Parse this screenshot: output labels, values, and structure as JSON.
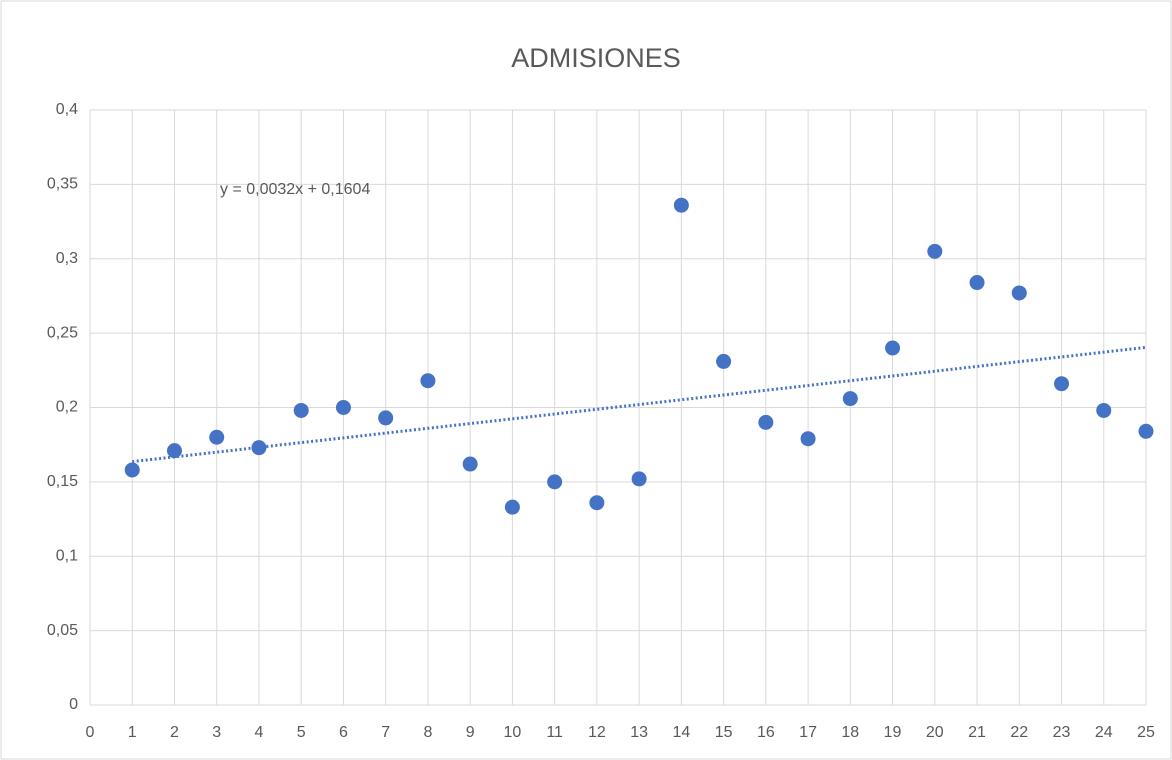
{
  "chart_data": {
    "type": "scatter",
    "title": "ADMISIONES",
    "x": [
      1,
      2,
      3,
      4,
      5,
      6,
      7,
      8,
      9,
      10,
      11,
      12,
      13,
      14,
      15,
      16,
      17,
      18,
      19,
      20,
      21,
      22,
      23,
      24,
      25
    ],
    "values": [
      0.158,
      0.171,
      0.18,
      0.173,
      0.198,
      0.2,
      0.193,
      0.218,
      0.162,
      0.133,
      0.15,
      0.136,
      0.152,
      0.336,
      0.231,
      0.19,
      0.179,
      0.206,
      0.24,
      0.305,
      0.284,
      0.277,
      0.216,
      0.198,
      0.184
    ],
    "color": "#4472c4",
    "trendline": {
      "label": "y = 0,0032x + 0,1604",
      "slope": 0.0032,
      "intercept": 0.1604
    },
    "xlim": [
      0,
      25
    ],
    "xticks": [
      0,
      1,
      2,
      3,
      4,
      5,
      6,
      7,
      8,
      9,
      10,
      11,
      12,
      13,
      14,
      15,
      16,
      17,
      18,
      19,
      20,
      21,
      22,
      23,
      24,
      25
    ],
    "ylim": [
      0,
      0.4
    ],
    "yticks": [
      0,
      {
        "value": 0.05,
        "label": "0,05"
      },
      {
        "value": 0.1,
        "label": "0,1"
      },
      {
        "value": 0.15,
        "label": "0,15"
      },
      {
        "value": 0.2,
        "label": "0,2"
      },
      {
        "value": 0.25,
        "label": "0,25"
      },
      {
        "value": 0.3,
        "label": "0,3"
      },
      {
        "value": 0.35,
        "label": "0,35"
      },
      {
        "value": 0.4,
        "label": "0,4"
      }
    ],
    "grid": true
  }
}
